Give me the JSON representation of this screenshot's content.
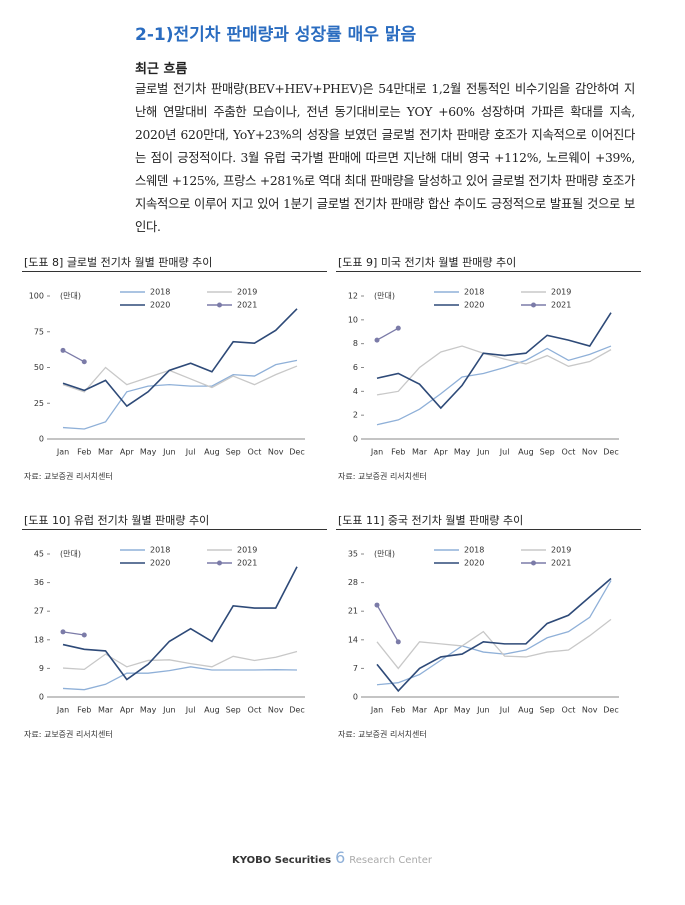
{
  "heading": "2-1)전기차 판매량과 성장률 매우 맑음",
  "subheading": "최근 흐름",
  "paragraph": "글로벌 전기차 판매량(BEV+HEV+PHEV)은 54만대로 1,2월 전통적인 비수기임을 감안하여 지난해 연말대비 주춤한 모습이나, 전년 동기대비로는 YOY +60% 성장하며 가파른 확대를 지속, 2020년 620만대, YoY+23%의 성장을 보였던 글로벌 전기차 판매량 호조가 지속적으로 이어진다는 점이 긍정적이다. 3월 유럽 국가별 판매에 따르면 지난해 대비 영국 +112%, 노르웨이 +39%, 스웨덴 +125%, 프랑스 +281%로 역대 최대 판매량을 달성하고 있어 글로벌 전기차 판매량 호조가 지속적으로 이루어 지고 있어 1분기 글로벌 전기차 판매량 합산 추이도 긍정적으로 발표될 것으로 보인다.",
  "chart_data": [
    {
      "type": "line",
      "title": "[도표 8] 글로벌 전기차 월별 판매량 추이",
      "unit_label": "(만대)",
      "source": "자료: 교보증권 리서치센터",
      "categories": [
        "Jan",
        "Feb",
        "Mar",
        "Apr",
        "May",
        "Jun",
        "Jul",
        "Aug",
        "Sep",
        "Oct",
        "Nov",
        "Dec"
      ],
      "ylim": [
        0,
        100
      ],
      "yticks": [
        0,
        25,
        50,
        75,
        100
      ],
      "series": [
        {
          "name": "2018",
          "color": "#8fb0d8",
          "values": [
            8,
            7,
            12,
            33,
            37,
            38,
            37,
            37,
            45,
            44,
            52,
            55
          ]
        },
        {
          "name": "2019",
          "color": "#c8c8c8",
          "values": [
            38,
            33,
            50,
            38,
            43,
            48,
            42,
            36,
            44,
            38,
            45,
            51
          ]
        },
        {
          "name": "2020",
          "color": "#2e4a78",
          "values": [
            39,
            34,
            41,
            23,
            33,
            48,
            53,
            47,
            68,
            67,
            76,
            91
          ]
        },
        {
          "name": "2021",
          "color": "#7b7ba8",
          "marker": true,
          "values": [
            62,
            54,
            null,
            null,
            null,
            null,
            null,
            null,
            null,
            null,
            null,
            null
          ]
        }
      ]
    },
    {
      "type": "line",
      "title": "[도표 9] 미국 전기차 월별 판매량 추이",
      "unit_label": "(만대)",
      "source": "자료: 교보증권 리서치센터",
      "categories": [
        "Jan",
        "Feb",
        "Mar",
        "Apr",
        "May",
        "Jun",
        "Jul",
        "Aug",
        "Sep",
        "Oct",
        "Nov",
        "Dec"
      ],
      "ylim": [
        0,
        12
      ],
      "yticks": [
        0,
        2,
        4,
        6,
        8,
        10,
        12
      ],
      "series": [
        {
          "name": "2018",
          "color": "#8fb0d8",
          "values": [
            1.2,
            1.6,
            2.5,
            3.8,
            5.2,
            5.5,
            6,
            6.6,
            7.6,
            6.6,
            7.1,
            7.8
          ]
        },
        {
          "name": "2019",
          "color": "#c8c8c8",
          "values": [
            3.7,
            4.0,
            6.0,
            7.3,
            7.8,
            7.2,
            6.7,
            6.3,
            7.0,
            6.1,
            6.5,
            7.5
          ]
        },
        {
          "name": "2020",
          "color": "#2e4a78",
          "values": [
            5.1,
            5.5,
            4.6,
            2.6,
            4.5,
            7.2,
            7.0,
            7.2,
            8.7,
            8.3,
            7.8,
            10.6
          ]
        },
        {
          "name": "2021",
          "color": "#7b7ba8",
          "marker": true,
          "values": [
            8.3,
            9.3,
            null,
            null,
            null,
            null,
            null,
            null,
            null,
            null,
            null,
            null
          ]
        }
      ]
    },
    {
      "type": "line",
      "title": "[도표 10] 유럽 전기차 월별 판매량 추이",
      "unit_label": "(만대)",
      "source": "자료: 교보증권 리서치센터",
      "categories": [
        "Jan",
        "Feb",
        "Mar",
        "Apr",
        "May",
        "Jun",
        "Jul",
        "Aug",
        "Sep",
        "Oct",
        "Nov",
        "Dec"
      ],
      "ylim": [
        0,
        45
      ],
      "yticks": [
        0,
        9,
        18,
        27,
        36,
        45
      ],
      "series": [
        {
          "name": "2018",
          "color": "#8fb0d8",
          "values": [
            2.7,
            2.3,
            4,
            7.5,
            7.5,
            8.3,
            9.5,
            8.5,
            8.5,
            8.5,
            8.6,
            8.5
          ]
        },
        {
          "name": "2019",
          "color": "#c8c8c8",
          "values": [
            9.1,
            8.7,
            13.5,
            9.5,
            11.5,
            11.7,
            10.5,
            9.5,
            12.8,
            11.5,
            12.5,
            14.3
          ]
        },
        {
          "name": "2020",
          "color": "#2e4a78",
          "values": [
            16.5,
            15,
            14.5,
            5.5,
            10.3,
            17.5,
            21.5,
            17.5,
            28.7,
            28,
            28,
            41
          ]
        },
        {
          "name": "2021",
          "color": "#7b7ba8",
          "marker": true,
          "values": [
            20.5,
            19.5,
            null,
            null,
            null,
            null,
            null,
            null,
            null,
            null,
            null,
            null
          ]
        }
      ]
    },
    {
      "type": "line",
      "title": "[도표 11] 중국 전기차 월별 판매량 추이",
      "unit_label": "(만대)",
      "source": "자료: 교보증권 리서치센터",
      "categories": [
        "Jan",
        "Feb",
        "Mar",
        "Apr",
        "May",
        "Jun",
        "Jul",
        "Aug",
        "Sep",
        "Oct",
        "Nov",
        "Dec"
      ],
      "ylim": [
        0,
        35
      ],
      "yticks": [
        0,
        7,
        14,
        21,
        28,
        35
      ],
      "series": [
        {
          "name": "2018",
          "color": "#8fb0d8",
          "values": [
            3,
            3.5,
            5.5,
            9,
            12.5,
            11,
            10.5,
            11.5,
            14.5,
            16,
            19.5,
            28.5
          ]
        },
        {
          "name": "2019",
          "color": "#c8c8c8",
          "values": [
            13.5,
            7,
            13.5,
            13,
            12.5,
            16,
            10,
            9.8,
            11,
            11.5,
            15,
            19
          ]
        },
        {
          "name": "2020",
          "color": "#2e4a78",
          "values": [
            8,
            1.5,
            7,
            9.8,
            10.5,
            13.5,
            13,
            13,
            18,
            20,
            24.5,
            29
          ]
        },
        {
          "name": "2021",
          "color": "#7b7ba8",
          "marker": true,
          "values": [
            22.5,
            13.5,
            null,
            null,
            null,
            null,
            null,
            null,
            null,
            null,
            null,
            null
          ]
        }
      ]
    }
  ],
  "footer": {
    "brand": "KYOBO Securities",
    "page": "6",
    "center": "Research Center"
  }
}
